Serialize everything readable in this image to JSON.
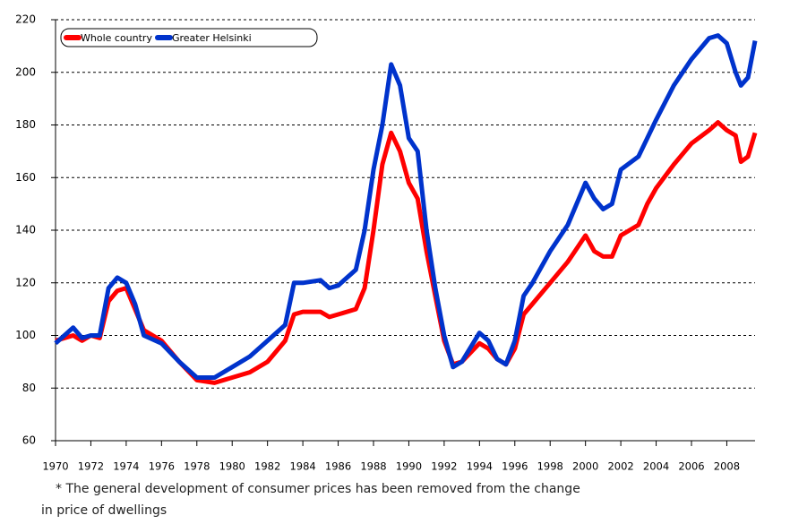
{
  "chart_data": {
    "type": "line",
    "x": [],
    "series": [
      {
        "name": "Whole country",
        "color": "#ff0000",
        "x": [
          1970,
          1971,
          1971.5,
          1972,
          1972.5,
          1973,
          1973.5,
          1974,
          1974.5,
          1975,
          1976,
          1977,
          1978,
          1979,
          1980,
          1981,
          1982,
          1983,
          1983.5,
          1984,
          1985,
          1985.5,
          1986,
          1987,
          1987.5,
          1988,
          1988.5,
          1989,
          1989.5,
          1990,
          1990.5,
          1991,
          1991.5,
          1992,
          1992.5,
          1993,
          1994,
          1994.5,
          1995,
          1995.5,
          1996,
          1996.5,
          1997,
          1998,
          1999,
          2000,
          2000.5,
          2001,
          2001.5,
          2002,
          2003,
          2003.5,
          2004,
          2005,
          2006,
          2007,
          2007.5,
          2008,
          2008.5,
          2008.8,
          2009.2,
          2009.6
        ],
        "values": [
          98,
          100,
          98,
          100,
          99,
          113,
          117,
          118,
          110,
          102,
          98,
          90,
          83,
          82,
          84,
          86,
          90,
          98,
          108,
          109,
          109,
          107,
          108,
          110,
          118,
          140,
          165,
          177,
          170,
          158,
          152,
          132,
          115,
          98,
          89,
          90,
          97,
          95,
          91,
          89,
          95,
          108,
          112,
          120,
          128,
          138,
          132,
          130,
          130,
          138,
          142,
          150,
          156,
          165,
          173,
          178,
          181,
          178,
          176,
          166,
          168,
          177
        ]
      },
      {
        "name": "Greater Helsinki",
        "color": "#0033cc",
        "x": [
          1970,
          1970.5,
          1971,
          1971.5,
          1972,
          1972.5,
          1973,
          1973.5,
          1974,
          1974.5,
          1975,
          1976,
          1977,
          1978,
          1979,
          1980,
          1981,
          1982,
          1983,
          1983.5,
          1984,
          1985,
          1985.5,
          1986,
          1987,
          1987.5,
          1988,
          1988.5,
          1989,
          1989.5,
          1990,
          1990.5,
          1991,
          1991.5,
          1992,
          1992.5,
          1993,
          1994,
          1994.5,
          1995,
          1995.5,
          1996,
          1996.5,
          1997,
          1998,
          1999,
          2000,
          2000.5,
          2001,
          2001.5,
          2002,
          2003,
          2003.5,
          2004,
          2005,
          2006,
          2007,
          2007.5,
          2008,
          2008.5,
          2008.8,
          2009.2,
          2009.6
        ],
        "values": [
          97,
          100,
          103,
          99,
          100,
          100,
          118,
          122,
          120,
          112,
          100,
          97,
          90,
          84,
          84,
          88,
          92,
          98,
          104,
          120,
          120,
          121,
          118,
          119,
          125,
          140,
          163,
          180,
          203,
          195,
          175,
          170,
          140,
          118,
          100,
          88,
          90,
          101,
          98,
          91,
          89,
          98,
          115,
          120,
          132,
          142,
          158,
          152,
          148,
          150,
          163,
          168,
          175,
          182,
          195,
          205,
          213,
          214,
          211,
          200,
          195,
          198,
          212
        ]
      }
    ],
    "xlim": [
      1970,
      2009.6
    ],
    "xticks": [
      1970,
      1972,
      1974,
      1976,
      1978,
      1980,
      1982,
      1984,
      1986,
      1988,
      1990,
      1992,
      1994,
      1996,
      1998,
      2000,
      2002,
      2004,
      2006,
      2008
    ],
    "ylim": [
      60,
      220
    ],
    "yticks": [
      60,
      80,
      100,
      120,
      140,
      160,
      180,
      200,
      220
    ],
    "grid": true,
    "legend": "top-left",
    "footnote": [
      "* The general development of consumer prices has been removed from the change",
      "in price of dwellings"
    ]
  }
}
